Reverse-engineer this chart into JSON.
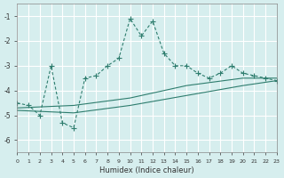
{
  "xlabel": "Humidex (Indice chaleur)",
  "background_color": "#d6eeee",
  "grid_color": "#ffffff",
  "line_color": "#2e7d6e",
  "xlim": [
    0,
    23
  ],
  "ylim": [
    -6.5,
    -0.5
  ],
  "yticks": [
    -1,
    -2,
    -3,
    -4,
    -5,
    -6
  ],
  "xticks": [
    0,
    1,
    2,
    3,
    4,
    5,
    6,
    7,
    8,
    9,
    10,
    11,
    12,
    13,
    14,
    15,
    16,
    17,
    18,
    19,
    20,
    21,
    22,
    23
  ],
  "main_x": [
    0,
    1,
    2,
    3,
    4,
    5,
    6,
    7,
    8,
    9,
    10,
    11,
    12,
    13,
    14,
    15,
    16,
    17,
    18,
    19,
    20,
    21,
    22,
    23
  ],
  "main_y": [
    -4.5,
    -4.6,
    -5.0,
    -3.0,
    -5.3,
    -5.5,
    -3.5,
    -3.4,
    -3.0,
    -2.7,
    -1.1,
    -1.8,
    -1.2,
    -2.5,
    -3.0,
    -3.0,
    -3.3,
    -3.5,
    -3.3,
    -3.0,
    -3.3,
    -3.4,
    -3.5,
    -3.6
  ],
  "upper_x": [
    0,
    5,
    10,
    15,
    20,
    23
  ],
  "upper_y": [
    -4.7,
    -4.6,
    -4.3,
    -3.8,
    -3.5,
    -3.5
  ],
  "lower_x": [
    0,
    5,
    10,
    15,
    20,
    23
  ],
  "lower_y": [
    -4.8,
    -4.9,
    -4.6,
    -4.2,
    -3.8,
    -3.6
  ]
}
